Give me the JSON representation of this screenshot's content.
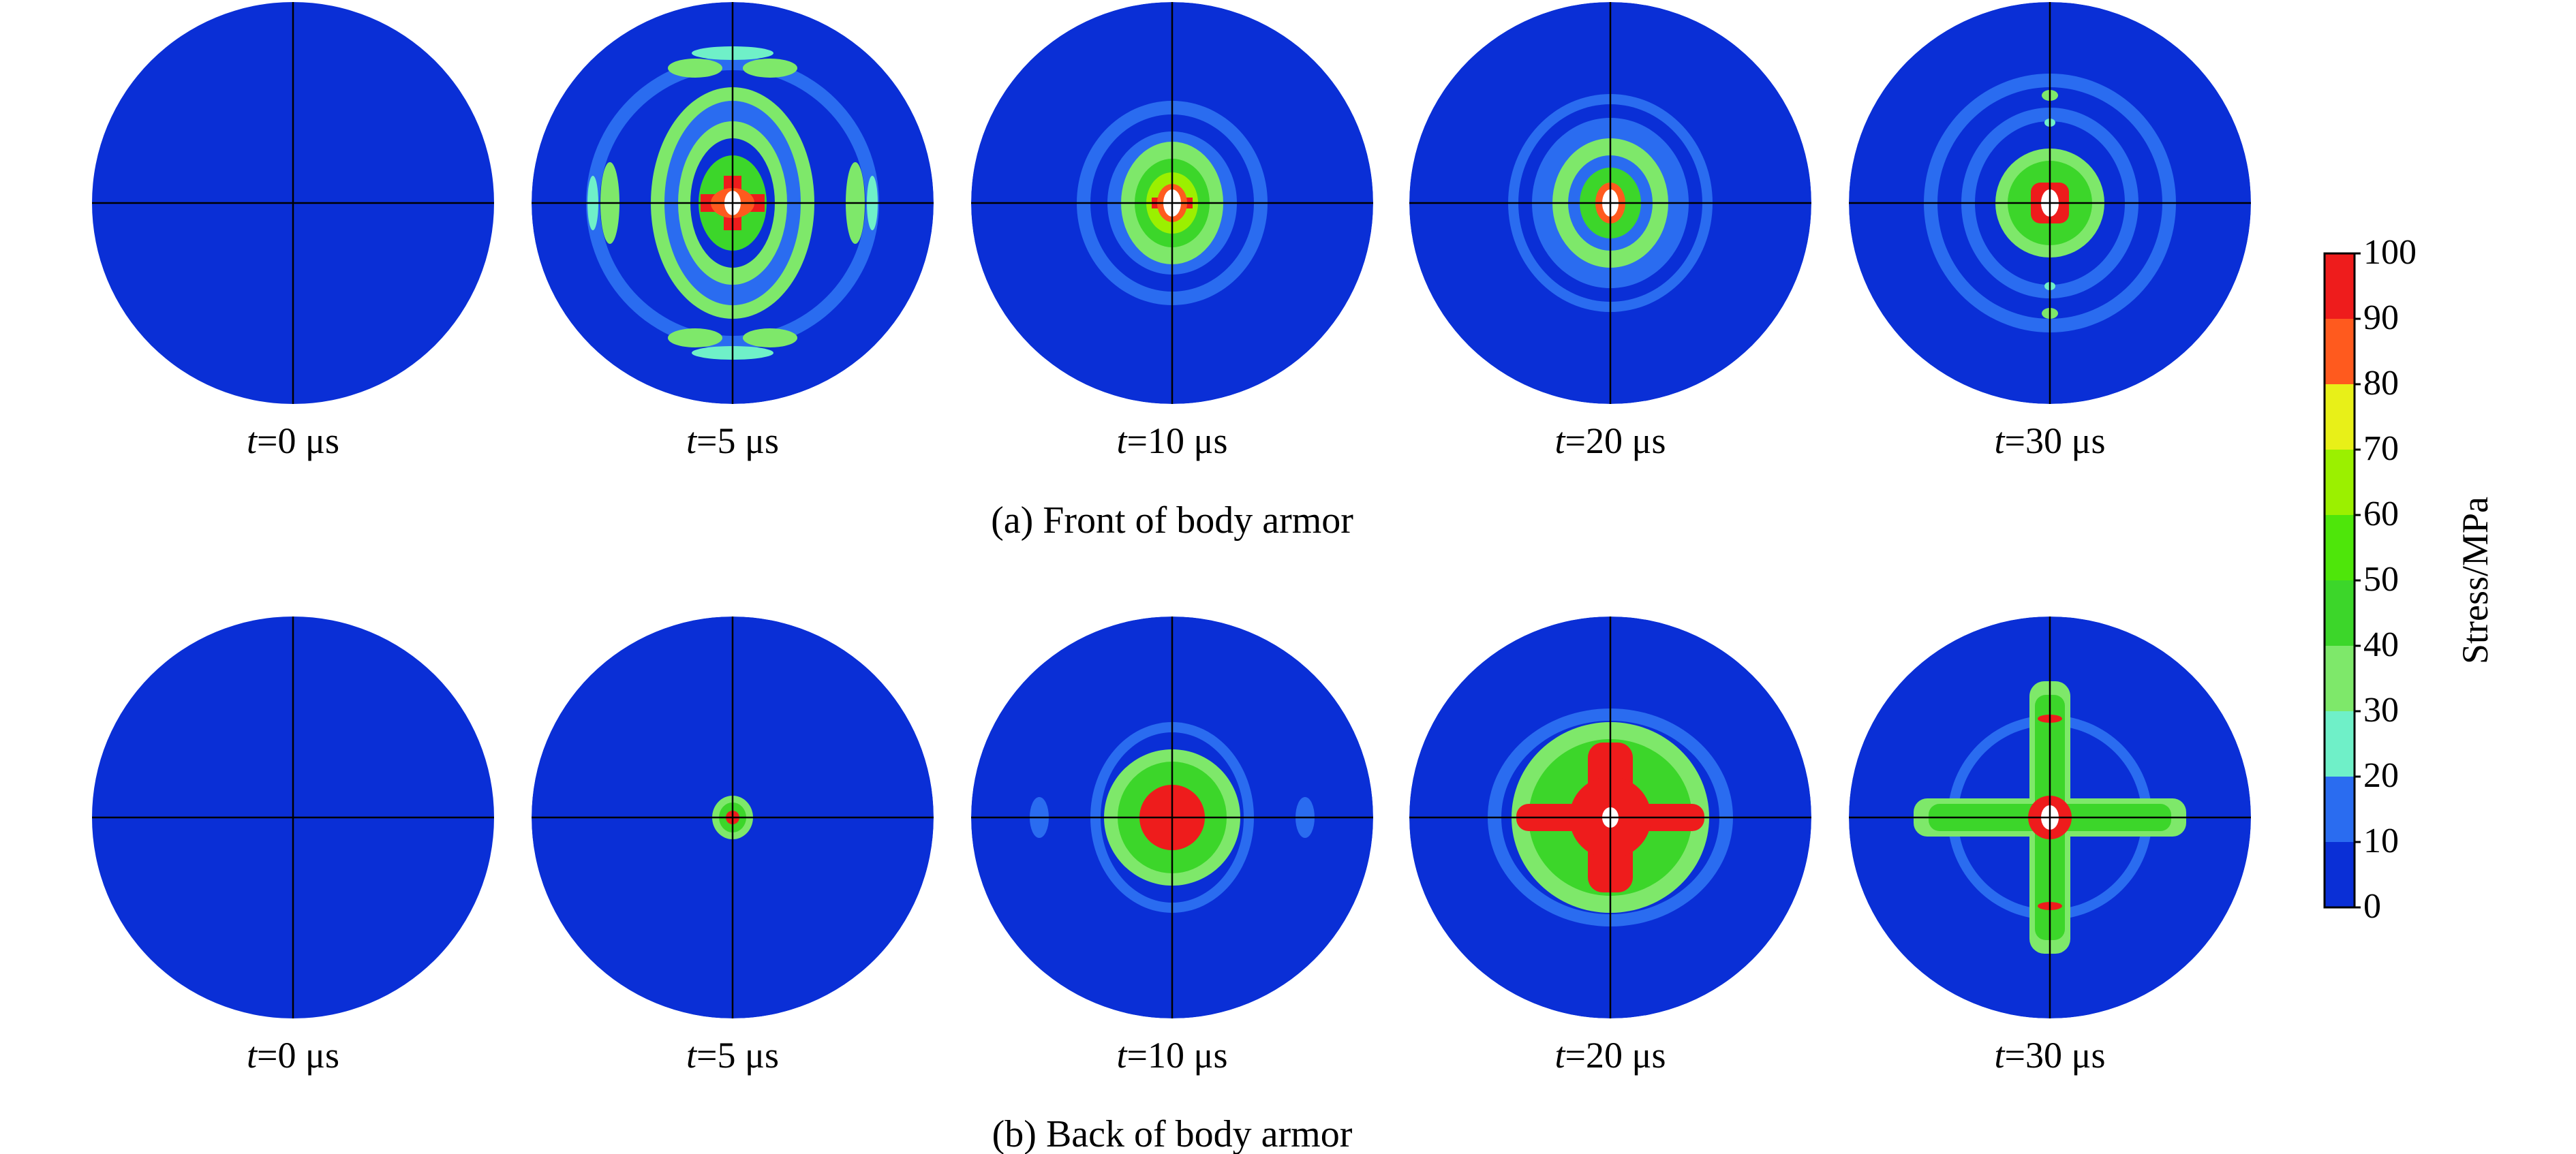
{
  "palette": {
    "band_0_10": "#0a2fd6",
    "band_10_20": "#2a6cf0",
    "band_20_30": "#6ff0c8",
    "band_30_40": "#7ee86a",
    "band_40_50": "#3cd62a",
    "band_50_60": "#4ee60a",
    "band_60_70": "#9bf000",
    "band_70_80": "#e8f018",
    "band_80_90": "#ff5a1e",
    "band_90_100": "#ee1c1c",
    "crosshair": "#000000",
    "hole": "#ffffff"
  },
  "rows": [
    {
      "caption": "(a) Front of body armor",
      "panels": [
        {
          "t_var": "t",
          "t_rest": "=0 μs"
        },
        {
          "t_var": "t",
          "t_rest": "=5 μs"
        },
        {
          "t_var": "t",
          "t_rest": "=10 μs"
        },
        {
          "t_var": "t",
          "t_rest": "=20 μs"
        },
        {
          "t_var": "t",
          "t_rest": "=30 μs"
        }
      ]
    },
    {
      "caption": "(b) Back of body armor",
      "panels": [
        {
          "t_var": "t",
          "t_rest": "=0 μs"
        },
        {
          "t_var": "t",
          "t_rest": "=5 μs"
        },
        {
          "t_var": "t",
          "t_rest": "=10 μs"
        },
        {
          "t_var": "t",
          "t_rest": "=20 μs"
        },
        {
          "t_var": "t",
          "t_rest": "=30 μs"
        }
      ]
    }
  ],
  "colorbar": {
    "title": "Stress/MPa",
    "ticks": [
      "100",
      "90",
      "80",
      "70",
      "60",
      "50",
      "40",
      "30",
      "20",
      "10",
      "0"
    ]
  }
}
